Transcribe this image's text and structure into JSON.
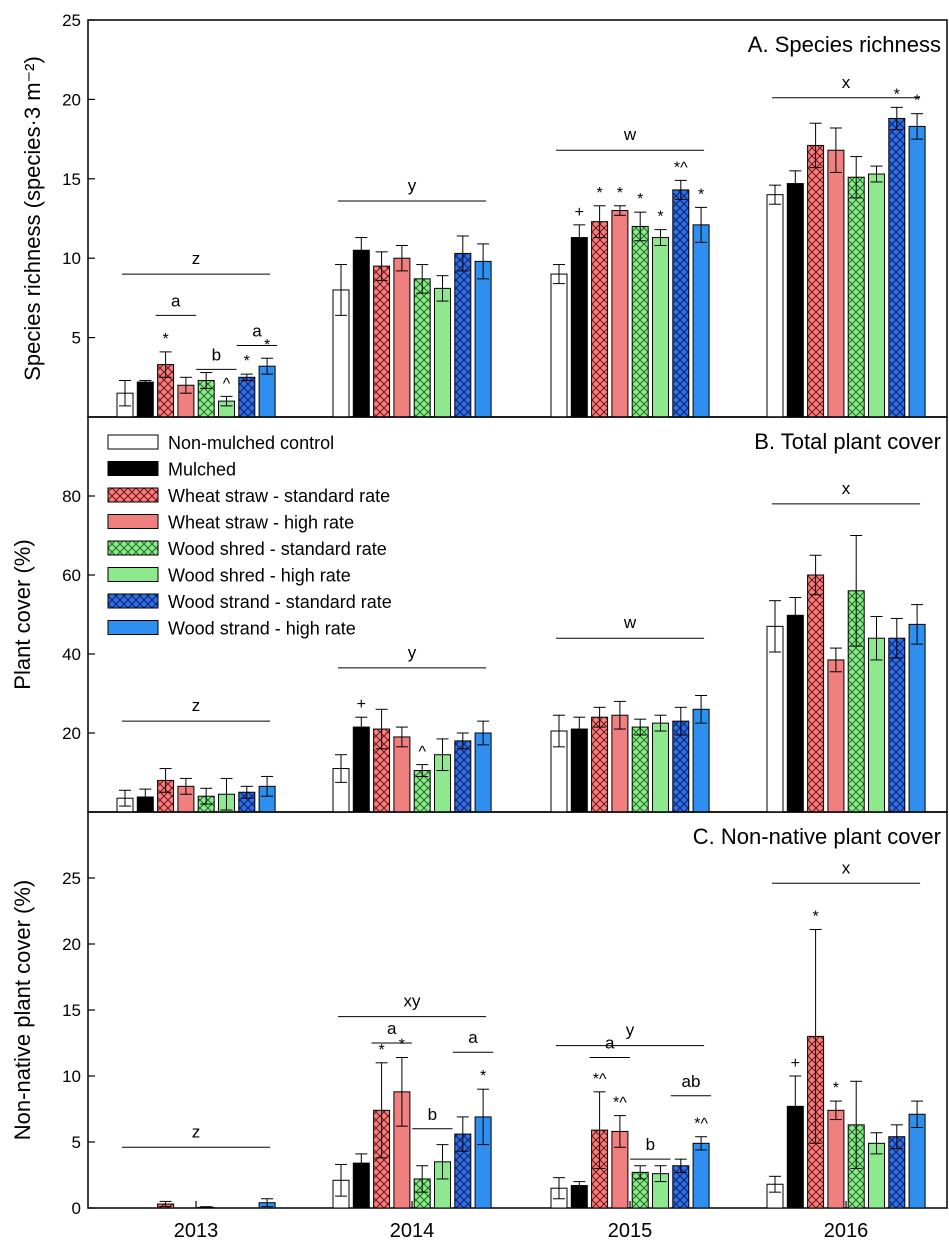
{
  "figure": {
    "x_categories": [
      "2013",
      "2014",
      "2015",
      "2016"
    ]
  },
  "legend": [
    {
      "name": "Non-mulched control",
      "fill": "#ffffff",
      "hatch": false
    },
    {
      "name": "Mulched",
      "fill": "#000000",
      "hatch": false
    },
    {
      "name": "Wheat straw - standard rate",
      "fill": "#f07f7f",
      "hatch": true
    },
    {
      "name": "Wheat straw - high rate",
      "fill": "#f07f7f",
      "hatch": false
    },
    {
      "name": "Wood shred - standard rate",
      "fill": "#8ee88e",
      "hatch": true
    },
    {
      "name": "Wood shred - high rate",
      "fill": "#8ee88e",
      "hatch": false
    },
    {
      "name": "Wood strand - standard rate",
      "fill": "#2f6fe0",
      "hatch": true
    },
    {
      "name": "Wood strand - high rate",
      "fill": "#2f8fef",
      "hatch": false
    }
  ],
  "chart_data": [
    {
      "type": "bar",
      "title": "A. Species richness",
      "ylabel": "Species richness (species·3 m⁻²)",
      "ylim": [
        0,
        25
      ],
      "yticks": [
        5,
        10,
        15,
        20,
        25
      ],
      "categories": [
        "2013",
        "2014",
        "2015",
        "2016"
      ],
      "series": [
        {
          "name": "Non-mulched control",
          "values": [
            1.5,
            8.0,
            9.0,
            14.0
          ],
          "errors": [
            0.8,
            1.6,
            0.6,
            0.6
          ]
        },
        {
          "name": "Mulched",
          "values": [
            2.2,
            10.5,
            11.3,
            14.7
          ],
          "errors": [
            0.1,
            0.8,
            0.8,
            0.8
          ]
        },
        {
          "name": "Wheat straw - standard rate",
          "values": [
            3.3,
            9.5,
            12.3,
            17.1
          ],
          "errors": [
            0.8,
            0.9,
            1.0,
            1.4
          ]
        },
        {
          "name": "Wheat straw - high rate",
          "values": [
            2.0,
            10.0,
            13.0,
            16.8
          ],
          "errors": [
            0.5,
            0.8,
            0.3,
            1.4
          ]
        },
        {
          "name": "Wood shred - standard rate",
          "values": [
            2.3,
            8.7,
            12.0,
            15.1
          ],
          "errors": [
            0.5,
            0.9,
            0.9,
            1.3
          ]
        },
        {
          "name": "Wood shred - high rate",
          "values": [
            1.0,
            8.1,
            11.3,
            15.3
          ],
          "errors": [
            0.3,
            0.8,
            0.5,
            0.5
          ]
        },
        {
          "name": "Wood strand - standard rate",
          "values": [
            2.5,
            10.3,
            14.3,
            18.8
          ],
          "errors": [
            0.2,
            1.1,
            0.6,
            0.7
          ]
        },
        {
          "name": "Wood strand - high rate",
          "values": [
            3.2,
            9.8,
            12.1,
            18.3
          ],
          "errors": [
            0.5,
            1.1,
            1.1,
            0.8
          ]
        }
      ],
      "bar_marks": [
        [
          "",
          "",
          "",
          ""
        ],
        [
          "",
          "",
          "+",
          ""
        ],
        [
          "*",
          "",
          "*",
          ""
        ],
        [
          "",
          "",
          "*",
          ""
        ],
        [
          "",
          "",
          "*",
          ""
        ],
        [
          "^",
          "",
          "*",
          ""
        ],
        [
          "*",
          "",
          "*^",
          "*"
        ],
        [
          "*",
          "",
          "*",
          "*"
        ]
      ],
      "group_letters": [
        "z",
        "y",
        "w",
        "x"
      ],
      "group_letter_values": [
        9.0,
        13.6,
        16.8,
        20.1
      ],
      "pair_letters": [
        {
          "category": 0,
          "pair": 1,
          "letter": "a",
          "value": 6.4
        },
        {
          "category": 0,
          "pair": 2,
          "letter": "b",
          "value": 3.0
        },
        {
          "category": 0,
          "pair": 3,
          "letter": "a",
          "value": 4.5
        }
      ]
    },
    {
      "type": "bar",
      "title": "B. Total plant cover",
      "ylabel": "Plant cover (%)",
      "ylim": [
        0,
        100
      ],
      "yticks": [
        20,
        40,
        60,
        80
      ],
      "categories": [
        "2013",
        "2014",
        "2015",
        "2016"
      ],
      "series": [
        {
          "name": "Non-mulched control",
          "values": [
            3.5,
            11.0,
            20.5,
            47.0
          ],
          "errors": [
            2.0,
            3.5,
            4.0,
            6.5
          ]
        },
        {
          "name": "Mulched",
          "values": [
            3.8,
            21.5,
            21.0,
            49.8
          ],
          "errors": [
            2.0,
            2.5,
            3.0,
            4.5
          ]
        },
        {
          "name": "Wheat straw - standard rate",
          "values": [
            8.0,
            21.0,
            24.0,
            60.0
          ],
          "errors": [
            3.0,
            5.0,
            2.5,
            5.0
          ]
        },
        {
          "name": "Wheat straw - high rate",
          "values": [
            6.5,
            19.0,
            24.5,
            38.5
          ],
          "errors": [
            2.0,
            2.5,
            3.5,
            3.0
          ]
        },
        {
          "name": "Wood shred - standard rate",
          "values": [
            4.0,
            10.5,
            21.5,
            56.0
          ],
          "errors": [
            2.0,
            1.5,
            2.0,
            14.0
          ]
        },
        {
          "name": "Wood shred - high rate",
          "values": [
            4.5,
            14.5,
            22.5,
            44.0
          ],
          "errors": [
            4.0,
            4.0,
            2.0,
            5.5
          ]
        },
        {
          "name": "Wood strand - standard rate",
          "values": [
            5.0,
            18.0,
            23.0,
            44.0
          ],
          "errors": [
            1.5,
            2.0,
            3.5,
            5.0
          ]
        },
        {
          "name": "Wood strand - high rate",
          "values": [
            6.5,
            20.0,
            26.0,
            47.5
          ],
          "errors": [
            2.5,
            3.0,
            3.5,
            5.0
          ]
        }
      ],
      "bar_marks": [
        [
          "",
          "",
          "",
          ""
        ],
        [
          "",
          "+",
          "",
          ""
        ],
        [
          "",
          "",
          "",
          ""
        ],
        [
          "",
          "",
          "",
          ""
        ],
        [
          "",
          "^",
          "",
          ""
        ],
        [
          "",
          "",
          "",
          ""
        ],
        [
          "",
          "",
          "",
          ""
        ],
        [
          "",
          "",
          "",
          ""
        ]
      ],
      "group_letters": [
        "z",
        "y",
        "w",
        "x"
      ],
      "group_letter_values": [
        23.0,
        36.5,
        44.0,
        78.0
      ],
      "pair_letters": []
    },
    {
      "type": "bar",
      "title": "C. Non-native plant cover",
      "ylabel": "Non-native plant cover (%)",
      "ylim": [
        0,
        30
      ],
      "yticks": [
        0,
        5,
        10,
        15,
        20,
        25
      ],
      "categories": [
        "2013",
        "2014",
        "2015",
        "2016"
      ],
      "series": [
        {
          "name": "Non-mulched control",
          "values": [
            0.0,
            2.1,
            1.5,
            1.8
          ],
          "errors": [
            0.0,
            1.2,
            0.8,
            0.6
          ]
        },
        {
          "name": "Mulched",
          "values": [
            0.0,
            3.4,
            1.7,
            7.7
          ],
          "errors": [
            0.0,
            0.7,
            0.3,
            2.3
          ]
        },
        {
          "name": "Wheat straw - standard rate",
          "values": [
            0.3,
            7.4,
            5.9,
            13.0
          ],
          "errors": [
            0.2,
            3.6,
            2.9,
            8.1
          ]
        },
        {
          "name": "Wheat straw - high rate",
          "values": [
            0.0,
            8.8,
            5.8,
            7.4
          ],
          "errors": [
            0.0,
            2.6,
            1.2,
            0.7
          ]
        },
        {
          "name": "Wood shred - standard rate",
          "values": [
            0.05,
            2.2,
            2.7,
            6.3
          ],
          "errors": [
            0.05,
            1.0,
            0.5,
            3.3
          ]
        },
        {
          "name": "Wood shred - high rate",
          "values": [
            0.0,
            3.5,
            2.6,
            4.9
          ],
          "errors": [
            0.0,
            1.3,
            0.6,
            0.8
          ]
        },
        {
          "name": "Wood strand - standard rate",
          "values": [
            0.0,
            5.6,
            3.2,
            5.4
          ],
          "errors": [
            0.0,
            1.3,
            0.5,
            0.9
          ]
        },
        {
          "name": "Wood strand - high rate",
          "values": [
            0.4,
            6.9,
            4.9,
            7.1
          ],
          "errors": [
            0.3,
            2.1,
            0.5,
            1.0
          ]
        }
      ],
      "bar_marks": [
        [
          "",
          "",
          "",
          ""
        ],
        [
          "",
          "",
          "",
          "+"
        ],
        [
          "",
          "*",
          "*^",
          "*"
        ],
        [
          "",
          "*",
          "*^",
          "*"
        ],
        [
          "",
          "",
          "",
          ""
        ],
        [
          "",
          "",
          "",
          ""
        ],
        [
          "",
          "",
          "",
          ""
        ],
        [
          "",
          "*",
          "*^",
          ""
        ]
      ],
      "group_letters": [
        "z",
        "xy",
        "y",
        "x"
      ],
      "group_letter_values": [
        4.6,
        14.5,
        12.3,
        24.6
      ],
      "pair_letters": [
        {
          "category": 1,
          "pair": 1,
          "letter": "a",
          "value": 12.5
        },
        {
          "category": 1,
          "pair": 2,
          "letter": "b",
          "value": 6.0
        },
        {
          "category": 1,
          "pair": 3,
          "letter": "a",
          "value": 11.8
        },
        {
          "category": 2,
          "pair": 1,
          "letter": "a",
          "value": 11.4
        },
        {
          "category": 2,
          "pair": 2,
          "letter": "b",
          "value": 3.7
        },
        {
          "category": 2,
          "pair": 3,
          "letter": "ab",
          "value": 8.5
        }
      ]
    }
  ]
}
